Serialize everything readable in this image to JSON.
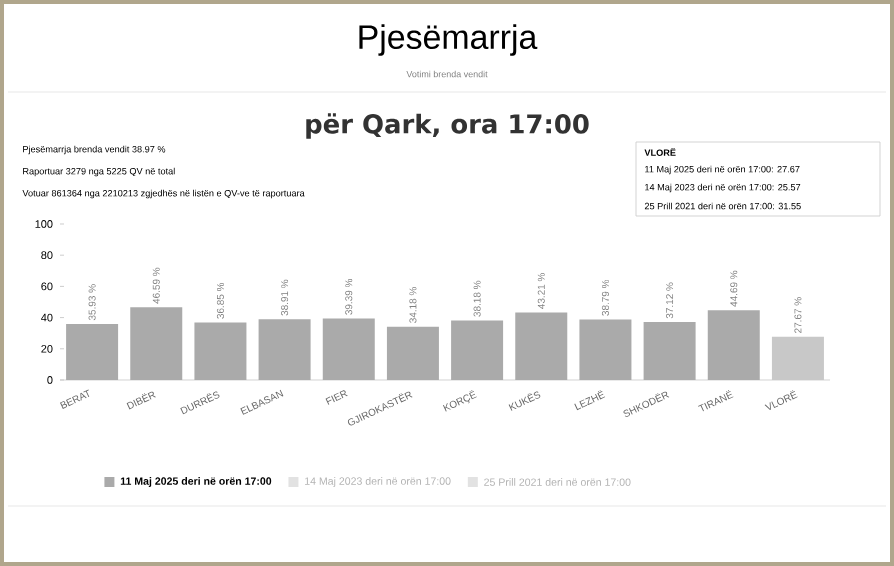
{
  "chart_data": {
    "type": "bar",
    "title": "Pjesëmarrja",
    "subtitle": "Votimi brenda vendit",
    "annotations": [
      "për Qark, ora 17:00",
      "Pjesëmarrja brenda vendit 38.97 %",
      "Raportuar 3279 nga 5225 QV në total",
      "Votuar 861364 nga 2210213 zgjedhës në listën e QV-ve të raportuara",
      "VLORË",
      "11 Maj 2025 deri në orën 17:00: 27.67",
      "14 Maj 2023 deri në orën 17:00: 25.57",
      "25 Prill 2021 deri në orën 17:00: 31.55"
    ],
    "categories": [
      "BERAT",
      "DIBËR",
      "DURRËS",
      "ELBASAN",
      "FIER",
      "GJIROKASTËR",
      "KORÇË",
      "KUKËS",
      "LEZHË",
      "SHKODËR",
      "TIRANË",
      "VLORË"
    ],
    "series": [
      {
        "name": "11 Maj 2025 deri në orën 17:00",
        "color": "#aaaaaa",
        "colors": [
          "#aaaaaa",
          "#aaaaaa",
          "#aaaaaa",
          "#aaaaaa",
          "#aaaaaa",
          "#aaaaaa",
          "#aaaaaa",
          "#aaaaaa",
          "#aaaaaa",
          "#aaaaaa",
          "#aaaaaa",
          "#c8c8c8"
        ],
        "values": [
          35.93,
          46.59,
          36.85,
          38.91,
          39.39,
          34.18,
          38.18,
          43.21,
          38.79,
          37.12,
          44.69,
          27.67
        ],
        "value_labels": [
          "35.93 %",
          "46.59 %",
          "36.85 %",
          "38.91 %",
          "39.39 %",
          "34.18 %",
          "38.18 %",
          "43.21 %",
          "38.79 %",
          "37.12 %",
          "44.69 %",
          "27.67 %"
        ]
      },
      {
        "name": "14 Maj 2023 deri në orën 17:00",
        "color": "#e2e2e2",
        "values": [
          null,
          null,
          null,
          null,
          null,
          null,
          null,
          null,
          null,
          null,
          null,
          null
        ]
      },
      {
        "name": "25 Prill 2021 deri në orën 17:00",
        "color": "#e2e2e2",
        "values": [
          null,
          null,
          null,
          null,
          null,
          null,
          null,
          null,
          null,
          null,
          null,
          null
        ]
      }
    ],
    "ylim": [
      0,
      100
    ],
    "yticks": [
      0,
      20,
      40,
      60,
      80,
      100
    ],
    "legend": "bottom",
    "grid": false
  }
}
